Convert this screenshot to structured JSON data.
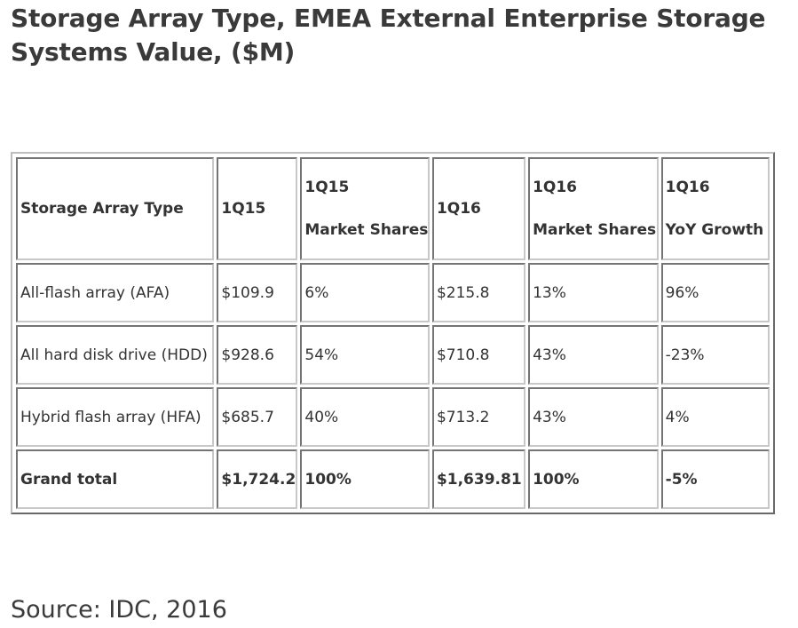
{
  "title": "Storage Array Type, EMEA External Enterprise Storage Systems Value, ($M)",
  "table": {
    "headers": [
      [
        "Storage Array Type"
      ],
      [
        "1Q15"
      ],
      [
        "1Q15",
        "Market Shares"
      ],
      [
        "1Q16"
      ],
      [
        "1Q16",
        "Market Shares"
      ],
      [
        "1Q16",
        "YoY Growth"
      ]
    ],
    "rows": [
      [
        "All-flash array (AFA)",
        "$109.9",
        "6%",
        "$215.8",
        "13%",
        "96%"
      ],
      [
        "All hard disk drive (HDD)",
        "$928.6",
        "54%",
        "$710.8",
        "43%",
        "-23%"
      ],
      [
        "Hybrid flash array (HFA)",
        "$685.7",
        "40%",
        "$713.2",
        "43%",
        "4%"
      ]
    ],
    "total": [
      "Grand total",
      "$1,724.2",
      "100%",
      "$1,639.81",
      "100%",
      "-5%"
    ]
  },
  "source": "Source: IDC, 2016"
}
